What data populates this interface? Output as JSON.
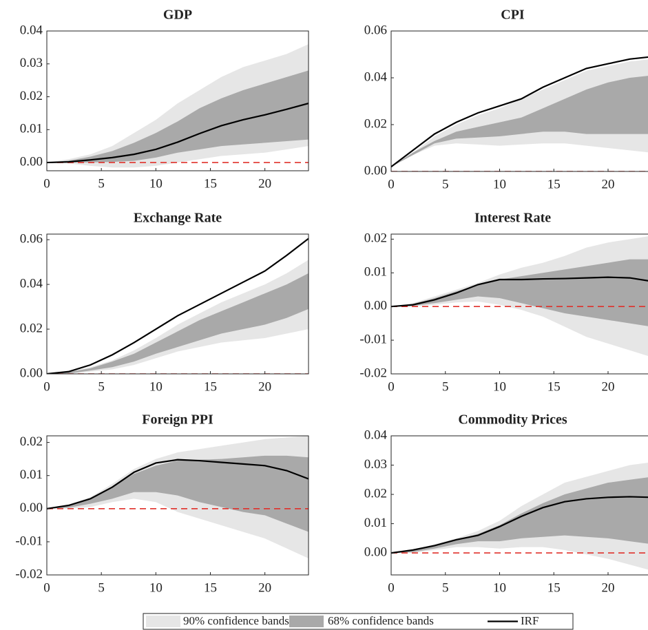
{
  "legend": {
    "items": [
      {
        "name": "90% confidence bands",
        "color": "#e6e6e6"
      },
      {
        "name": "68% confidence bands",
        "color": "#a9a9a9"
      },
      {
        "name": "IRF",
        "color": "#000000"
      }
    ]
  },
  "chart_data": [
    {
      "type": "line",
      "title": "GDP",
      "x": [
        0,
        2,
        4,
        6,
        8,
        10,
        12,
        14,
        16,
        18,
        20,
        22,
        24
      ],
      "xlim": [
        0,
        24
      ],
      "xticks": [
        0,
        5,
        10,
        15,
        20
      ],
      "ylim": [
        -0.0025,
        0.04
      ],
      "yticks": [
        {
          "value": 0,
          "label": "0.00"
        },
        0.01,
        0.02,
        0.03,
        0.04
      ],
      "bands": [
        {
          "lower": [
            0,
            -0.0003,
            -0.001,
            -0.0015,
            -0.0015,
            -0.001,
            0,
            0.001,
            0.002,
            0.0025,
            0.003,
            0.004,
            0.005
          ],
          "upper": [
            0,
            0.001,
            0.0025,
            0.005,
            0.009,
            0.013,
            0.018,
            0.022,
            0.026,
            0.029,
            0.031,
            0.033,
            0.036
          ],
          "color": "#e6e6e6"
        },
        {
          "lower": [
            0,
            0,
            0,
            0.0002,
            0.0005,
            0.0015,
            0.003,
            0.004,
            0.005,
            0.0055,
            0.006,
            0.0065,
            0.007
          ],
          "upper": [
            0,
            0.0006,
            0.0018,
            0.0035,
            0.006,
            0.009,
            0.0125,
            0.0165,
            0.0195,
            0.022,
            0.024,
            0.026,
            0.028
          ],
          "color": "#a9a9a9"
        }
      ],
      "series": [
        {
          "values": [
            0,
            0.0002,
            0.0008,
            0.0015,
            0.0025,
            0.004,
            0.0062,
            0.0088,
            0.0112,
            0.013,
            0.0145,
            0.0162,
            0.018
          ],
          "color": "#000000"
        }
      ],
      "hline": {
        "value": 0,
        "color": "#e0302a"
      }
    },
    {
      "type": "line",
      "title": "CPI",
      "x": [
        0,
        2,
        4,
        6,
        8,
        10,
        12,
        14,
        16,
        18,
        20,
        22,
        24
      ],
      "xlim": [
        0,
        24
      ],
      "xticks": [
        0,
        5,
        10,
        15,
        20
      ],
      "ylim": [
        0,
        0.06
      ],
      "yticks": [
        {
          "value": 0,
          "label": "0.00"
        },
        0.02,
        0.04,
        0.06
      ],
      "bands": [
        {
          "lower": [
            0.002,
            0.007,
            0.011,
            0.012,
            0.0115,
            0.011,
            0.0115,
            0.012,
            0.012,
            0.011,
            0.01,
            0.009,
            0.008
          ],
          "upper": [
            0.002,
            0.008,
            0.015,
            0.02,
            0.024,
            0.027,
            0.031,
            0.035,
            0.039,
            0.043,
            0.045,
            0.047,
            0.048
          ],
          "color": "#e6e6e6"
        },
        {
          "lower": [
            0.002,
            0.007,
            0.012,
            0.014,
            0.0145,
            0.015,
            0.016,
            0.017,
            0.017,
            0.016,
            0.016,
            0.016,
            0.016
          ],
          "upper": [
            0.002,
            0.008,
            0.013,
            0.017,
            0.019,
            0.021,
            0.023,
            0.027,
            0.031,
            0.035,
            0.038,
            0.04,
            0.041
          ],
          "color": "#a9a9a9"
        }
      ],
      "series": [
        {
          "values": [
            0.002,
            0.009,
            0.016,
            0.021,
            0.025,
            0.028,
            0.031,
            0.036,
            0.04,
            0.044,
            0.046,
            0.048,
            0.049
          ],
          "color": "#000000"
        }
      ],
      "hline": {
        "value": 0,
        "color": "#e0302a"
      }
    },
    {
      "type": "line",
      "title": "Exchange Rate",
      "x": [
        0,
        2,
        4,
        6,
        8,
        10,
        12,
        14,
        16,
        18,
        20,
        22,
        24
      ],
      "xlim": [
        0,
        24
      ],
      "xticks": [
        0,
        5,
        10,
        15,
        20
      ],
      "ylim": [
        0,
        0.0625
      ],
      "yticks": [
        {
          "value": 0,
          "label": "0.00"
        },
        0.02,
        0.04,
        0.06
      ],
      "bands": [
        {
          "lower": [
            0,
            0,
            0.001,
            0.002,
            0.004,
            0.007,
            0.01,
            0.012,
            0.014,
            0.015,
            0.016,
            0.018,
            0.02
          ],
          "upper": [
            0,
            0.001,
            0.003,
            0.006,
            0.0105,
            0.016,
            0.022,
            0.027,
            0.032,
            0.036,
            0.04,
            0.045,
            0.051
          ],
          "color": "#e6e6e6"
        },
        {
          "lower": [
            0,
            0.0002,
            0.0015,
            0.003,
            0.0055,
            0.009,
            0.012,
            0.015,
            0.018,
            0.02,
            0.022,
            0.025,
            0.029
          ],
          "upper": [
            0,
            0.0008,
            0.0025,
            0.0055,
            0.009,
            0.014,
            0.019,
            0.024,
            0.028,
            0.032,
            0.036,
            0.04,
            0.045
          ],
          "color": "#a9a9a9"
        }
      ],
      "series": [
        {
          "values": [
            0,
            0.001,
            0.004,
            0.0085,
            0.014,
            0.02,
            0.026,
            0.031,
            0.036,
            0.041,
            0.046,
            0.053,
            0.0605
          ],
          "color": "#000000"
        }
      ],
      "hline": {
        "value": 0,
        "color": "#e0302a"
      }
    },
    {
      "type": "line",
      "title": "Interest Rate",
      "x": [
        0,
        2,
        4,
        6,
        8,
        10,
        12,
        14,
        16,
        18,
        20,
        22,
        24
      ],
      "xlim": [
        0,
        24
      ],
      "xticks": [
        0,
        5,
        10,
        15,
        20
      ],
      "ylim": [
        -0.02,
        0.0215
      ],
      "yticks": [
        -0.02,
        -0.01,
        {
          "value": 0,
          "label": "0.00"
        },
        0.01,
        0.02
      ],
      "bands": [
        {
          "lower": [
            0,
            0,
            0.0005,
            0.0012,
            0.0015,
            0.0005,
            -0.001,
            -0.003,
            -0.006,
            -0.009,
            -0.011,
            -0.013,
            -0.015
          ],
          "upper": [
            0,
            0.001,
            0.003,
            0.005,
            0.007,
            0.0095,
            0.0115,
            0.013,
            0.015,
            0.0175,
            0.019,
            0.02,
            0.021
          ],
          "color": "#e6e6e6"
        },
        {
          "lower": [
            0,
            0.0002,
            0.001,
            0.002,
            0.003,
            0.0025,
            0.001,
            -0.0005,
            -0.002,
            -0.003,
            -0.004,
            -0.005,
            -0.006
          ],
          "upper": [
            0,
            0.0008,
            0.0025,
            0.0045,
            0.0065,
            0.008,
            0.009,
            0.01,
            0.011,
            0.012,
            0.013,
            0.014,
            0.014
          ],
          "color": "#a9a9a9"
        }
      ],
      "series": [
        {
          "values": [
            0,
            0.0005,
            0.002,
            0.004,
            0.0065,
            0.008,
            0.008,
            0.0082,
            0.0083,
            0.0085,
            0.0087,
            0.0085,
            0.0075
          ],
          "color": "#000000"
        }
      ],
      "hline": {
        "value": 0,
        "color": "#e0302a"
      }
    },
    {
      "type": "line",
      "title": "Foreign PPI",
      "x": [
        0,
        2,
        4,
        6,
        8,
        10,
        12,
        14,
        16,
        18,
        20,
        22,
        24
      ],
      "xlim": [
        0,
        24
      ],
      "xticks": [
        0,
        5,
        10,
        15,
        20
      ],
      "ylim": [
        -0.02,
        0.022
      ],
      "yticks": [
        -0.02,
        -0.01,
        {
          "value": 0,
          "label": "0.00"
        },
        0.01,
        0.02
      ],
      "bands": [
        {
          "lower": [
            0,
            0,
            0.0005,
            0.002,
            0.003,
            0.002,
            -0.001,
            -0.003,
            -0.005,
            -0.007,
            -0.009,
            -0.012,
            -0.015
          ],
          "upper": [
            0,
            0.0012,
            0.0035,
            0.0075,
            0.012,
            0.015,
            0.017,
            0.018,
            0.019,
            0.02,
            0.021,
            0.0215,
            0.022
          ],
          "color": "#e6e6e6"
        },
        {
          "lower": [
            0,
            0.0003,
            0.0015,
            0.003,
            0.005,
            0.005,
            0.004,
            0.002,
            0.0005,
            -0.001,
            -0.002,
            -0.0045,
            -0.007
          ],
          "upper": [
            0,
            0.001,
            0.003,
            0.0065,
            0.0105,
            0.013,
            0.0145,
            0.0148,
            0.015,
            0.0155,
            0.016,
            0.016,
            0.0155
          ],
          "color": "#a9a9a9"
        }
      ],
      "series": [
        {
          "values": [
            0,
            0.001,
            0.003,
            0.0065,
            0.011,
            0.0138,
            0.0148,
            0.0145,
            0.014,
            0.0135,
            0.013,
            0.0115,
            0.009
          ],
          "color": "#000000"
        }
      ],
      "hline": {
        "value": 0,
        "color": "#e0302a"
      }
    },
    {
      "type": "line",
      "title": "Commodity Prices",
      "x": [
        0,
        2,
        4,
        6,
        8,
        10,
        12,
        14,
        16,
        18,
        20,
        22,
        24
      ],
      "xlim": [
        0,
        24
      ],
      "xticks": [
        0,
        5,
        10,
        15,
        20
      ],
      "ylim": [
        -0.0075,
        0.04
      ],
      "yticks": [
        {
          "value": 0,
          "label": "0.00"
        },
        0.01,
        0.02,
        0.03,
        0.04
      ],
      "bands": [
        {
          "lower": [
            0,
            0,
            0.001,
            0.002,
            0.002,
            0.0015,
            0.002,
            0.002,
            0.001,
            -0.0005,
            -0.002,
            -0.004,
            -0.006
          ],
          "upper": [
            0,
            0.001,
            0.003,
            0.005,
            0.0075,
            0.011,
            0.016,
            0.02,
            0.024,
            0.026,
            0.028,
            0.03,
            0.031
          ],
          "color": "#e6e6e6"
        },
        {
          "lower": [
            0,
            0.0003,
            0.0015,
            0.003,
            0.004,
            0.004,
            0.005,
            0.0055,
            0.006,
            0.0055,
            0.005,
            0.004,
            0.003
          ],
          "upper": [
            0,
            0.0008,
            0.0025,
            0.0045,
            0.0065,
            0.0095,
            0.0135,
            0.017,
            0.02,
            0.022,
            0.024,
            0.025,
            0.026
          ],
          "color": "#a9a9a9"
        }
      ],
      "series": [
        {
          "values": [
            0,
            0.001,
            0.0025,
            0.0045,
            0.006,
            0.009,
            0.0125,
            0.0155,
            0.0175,
            0.0185,
            0.019,
            0.0192,
            0.019
          ],
          "color": "#000000"
        }
      ],
      "hline": {
        "value": 0,
        "color": "#e0302a"
      }
    }
  ]
}
